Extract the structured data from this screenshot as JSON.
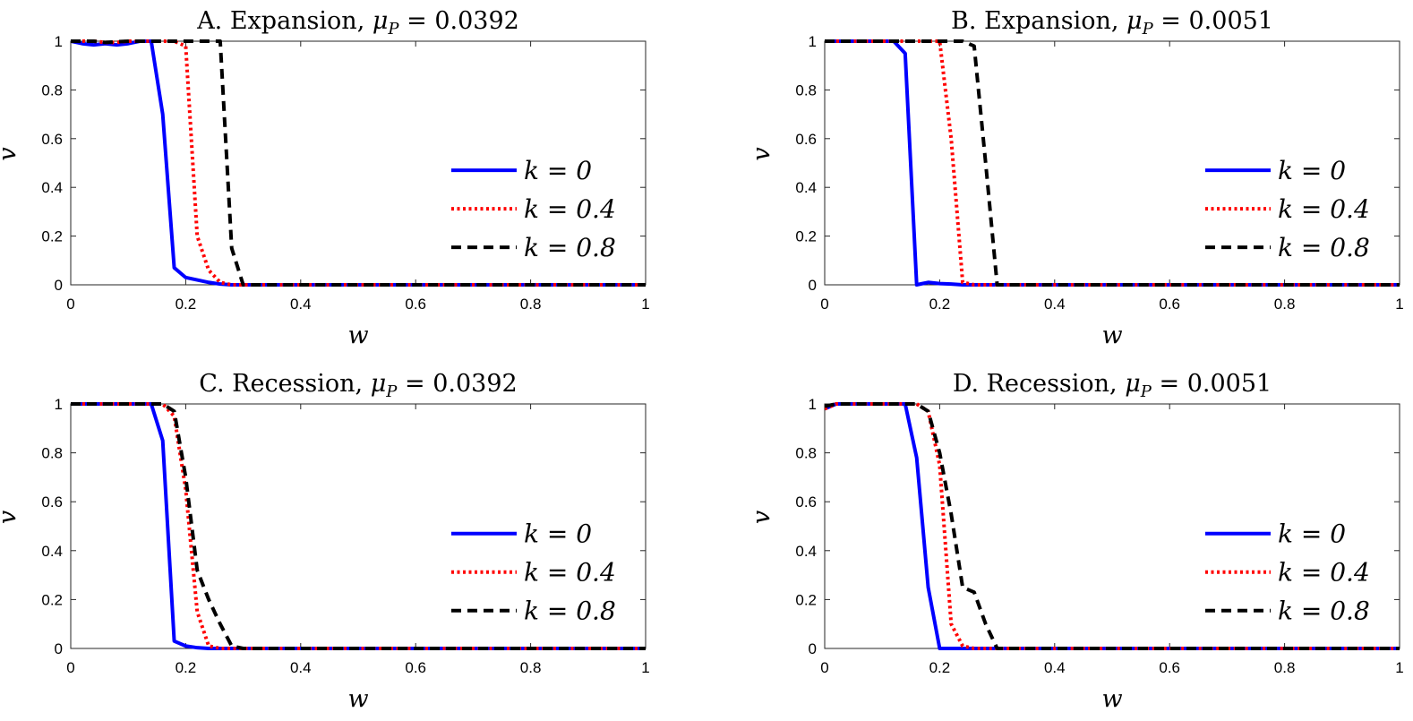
{
  "chart_data": [
    {
      "type": "line",
      "title": "A. Expansion, μP = 0.0392",
      "title_parts": {
        "prefix": "A. Expansion, ",
        "symbol": "μ",
        "subscript": "P",
        "suffix": " = 0.0392"
      },
      "xlabel": "w",
      "ylabel": "v",
      "xlim": [
        0,
        1
      ],
      "ylim": [
        0,
        1
      ],
      "xticks": [
        "0",
        "0.2",
        "0.4",
        "0.6",
        "0.8",
        "1"
      ],
      "yticks": [
        "0",
        "0.2",
        "0.4",
        "0.6",
        "0.8",
        "1"
      ],
      "grid": false,
      "legend_position": "center-right",
      "series": [
        {
          "name": "k = 0",
          "color": "#0000ff",
          "style": "solid",
          "x": [
            0,
            0.02,
            0.04,
            0.06,
            0.08,
            0.1,
            0.12,
            0.14,
            0.16,
            0.18,
            0.2,
            0.22,
            0.24,
            0.26,
            0.28,
            1
          ],
          "y": [
            1,
            0.99,
            0.985,
            0.99,
            0.985,
            0.99,
            1,
            1,
            0.7,
            0.07,
            0.03,
            0.02,
            0.01,
            0.003,
            0,
            0
          ]
        },
        {
          "name": "k = 0.4",
          "color": "#ff0000",
          "style": "dotted",
          "x": [
            0,
            0.04,
            0.06,
            0.08,
            0.1,
            0.12,
            0.14,
            0.16,
            0.18,
            0.2,
            0.22,
            0.24,
            0.26,
            0.28,
            1
          ],
          "y": [
            1,
            1,
            0.995,
            0.995,
            1,
            1,
            1,
            1,
            1,
            0.98,
            0.2,
            0.06,
            0.01,
            0,
            0
          ]
        },
        {
          "name": "k = 0.8",
          "color": "#000000",
          "style": "dashed",
          "x": [
            0,
            0.04,
            0.06,
            0.1,
            0.14,
            0.18,
            0.22,
            0.24,
            0.26,
            0.28,
            0.3,
            1
          ],
          "y": [
            1,
            1,
            0.995,
            1,
            1,
            1,
            1,
            1,
            1,
            0.15,
            0,
            0
          ]
        }
      ]
    },
    {
      "type": "line",
      "title": "B. Expansion, μP = 0.0051",
      "title_parts": {
        "prefix": "B. Expansion, ",
        "symbol": "μ",
        "subscript": "P",
        "suffix": " = 0.0051"
      },
      "xlabel": "w",
      "ylabel": "v",
      "xlim": [
        0,
        1
      ],
      "ylim": [
        0,
        1
      ],
      "xticks": [
        "0",
        "0.2",
        "0.4",
        "0.6",
        "0.8",
        "1"
      ],
      "yticks": [
        "0",
        "0.2",
        "0.4",
        "0.6",
        "0.8",
        "1"
      ],
      "grid": false,
      "legend_position": "center-right",
      "series": [
        {
          "name": "k = 0",
          "color": "#0000ff",
          "style": "solid",
          "x": [
            0,
            0.12,
            0.14,
            0.16,
            0.17,
            0.18,
            0.2,
            0.22,
            0.24,
            1
          ],
          "y": [
            1,
            1,
            0.95,
            0.0,
            0.005,
            0.01,
            0.005,
            0.003,
            0,
            0
          ]
        },
        {
          "name": "k = 0.4",
          "color": "#ff0000",
          "style": "dotted",
          "x": [
            0,
            0.18,
            0.2,
            0.22,
            0.24,
            0.26,
            1
          ],
          "y": [
            1,
            1,
            1,
            0.6,
            0.01,
            0,
            0
          ]
        },
        {
          "name": "k = 0.8",
          "color": "#000000",
          "style": "dashed",
          "x": [
            0,
            0.24,
            0.26,
            0.28,
            0.3,
            1
          ],
          "y": [
            1,
            1,
            0.98,
            0.5,
            0,
            0
          ]
        }
      ]
    },
    {
      "type": "line",
      "title": "C. Recession, μP = 0.0392",
      "title_parts": {
        "prefix": "C. Recession, ",
        "symbol": "μ",
        "subscript": "P",
        "suffix": " = 0.0392"
      },
      "xlabel": "w",
      "ylabel": "v",
      "xlim": [
        0,
        1
      ],
      "ylim": [
        0,
        1
      ],
      "xticks": [
        "0",
        "0.2",
        "0.4",
        "0.6",
        "0.8",
        "1"
      ],
      "yticks": [
        "0",
        "0.2",
        "0.4",
        "0.6",
        "0.8",
        "1"
      ],
      "grid": false,
      "legend_position": "center-right",
      "series": [
        {
          "name": "k = 0",
          "color": "#0000ff",
          "style": "solid",
          "x": [
            0,
            0.14,
            0.16,
            0.18,
            0.2,
            0.22,
            0.24,
            0.26,
            1
          ],
          "y": [
            1,
            1,
            0.85,
            0.03,
            0.01,
            0.003,
            0,
            0,
            0
          ]
        },
        {
          "name": "k = 0.4",
          "color": "#ff0000",
          "style": "dotted",
          "x": [
            0,
            0.16,
            0.18,
            0.2,
            0.22,
            0.24,
            0.26,
            1
          ],
          "y": [
            1,
            1,
            0.95,
            0.65,
            0.15,
            0.01,
            0,
            0
          ]
        },
        {
          "name": "k = 0.8",
          "color": "#000000",
          "style": "dashed",
          "x": [
            0,
            0.16,
            0.18,
            0.2,
            0.22,
            0.24,
            0.26,
            0.28,
            0.3,
            1
          ],
          "y": [
            1,
            1,
            0.97,
            0.7,
            0.32,
            0.2,
            0.1,
            0.01,
            0,
            0
          ]
        }
      ]
    },
    {
      "type": "line",
      "title": "D. Recession, μP = 0.0051",
      "title_parts": {
        "prefix": "D. Recession, ",
        "symbol": "μ",
        "subscript": "P",
        "suffix": " = 0.0051"
      },
      "xlabel": "w",
      "ylabel": "v",
      "xlim": [
        0,
        1
      ],
      "ylim": [
        0,
        1
      ],
      "xticks": [
        "0",
        "0.2",
        "0.4",
        "0.6",
        "0.8",
        "1"
      ],
      "yticks": [
        "0",
        "0.2",
        "0.4",
        "0.6",
        "0.8",
        "1"
      ],
      "grid": false,
      "legend_position": "center-right",
      "series": [
        {
          "name": "k = 0",
          "color": "#0000ff",
          "style": "solid",
          "x": [
            0,
            0.02,
            0.14,
            0.16,
            0.18,
            0.2,
            0.22,
            1
          ],
          "y": [
            0.98,
            1,
            1,
            0.78,
            0.25,
            0,
            0,
            0
          ]
        },
        {
          "name": "k = 0.4",
          "color": "#ff0000",
          "style": "dotted",
          "x": [
            0,
            0.02,
            0.14,
            0.16,
            0.18,
            0.2,
            0.22,
            0.24,
            0.26,
            1
          ],
          "y": [
            0.98,
            1,
            1,
            1,
            0.97,
            0.75,
            0.1,
            0.01,
            0,
            0
          ]
        },
        {
          "name": "k = 0.8",
          "color": "#000000",
          "style": "dashed",
          "x": [
            0,
            0.02,
            0.16,
            0.18,
            0.2,
            0.22,
            0.24,
            0.26,
            0.28,
            0.3,
            1
          ],
          "y": [
            0.99,
            1,
            1,
            0.97,
            0.8,
            0.55,
            0.25,
            0.23,
            0.1,
            0,
            0
          ]
        }
      ]
    }
  ]
}
